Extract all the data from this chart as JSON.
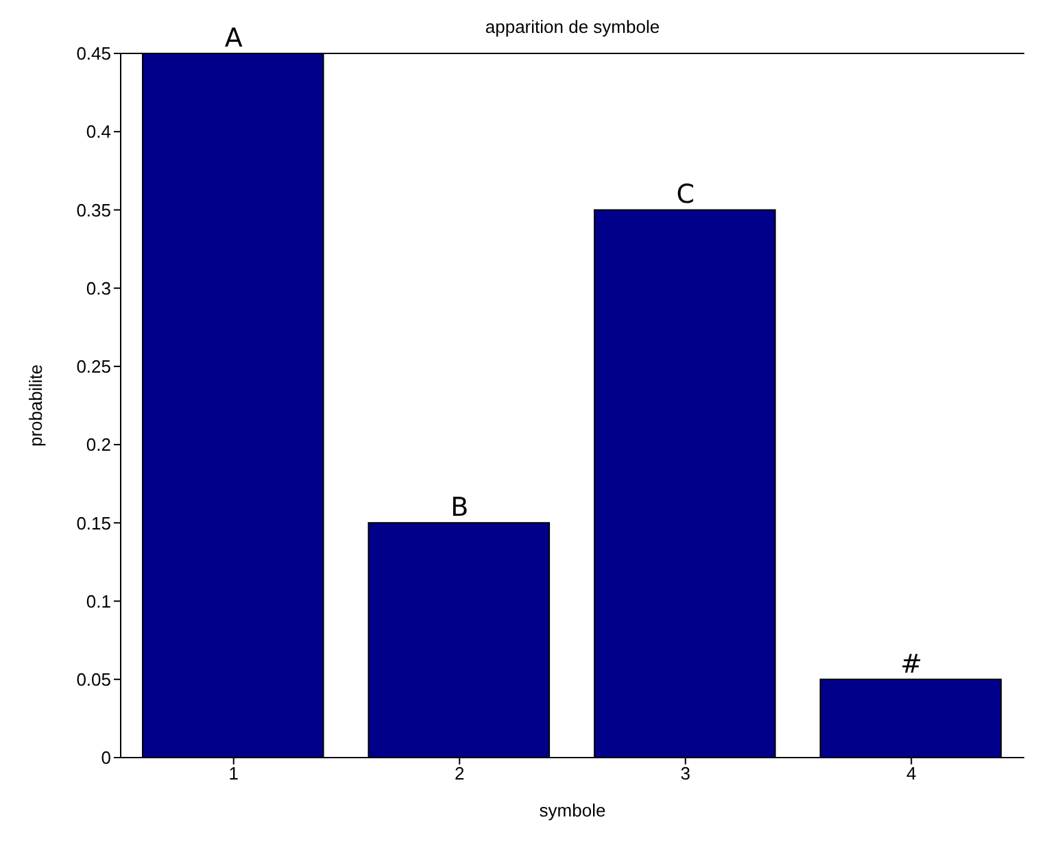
{
  "chart_data": {
    "type": "bar",
    "title": "apparition de symbole",
    "xlabel": "symbole",
    "ylabel": "probabilite",
    "x": [
      1,
      2,
      3,
      4
    ],
    "values": [
      0.45,
      0.15,
      0.35,
      0.05
    ],
    "color": "#00008b",
    "xlim": [
      0.5,
      4.5
    ],
    "xticks": [
      1,
      2,
      3,
      4
    ],
    "ylim": [
      0,
      0.45
    ],
    "yticks": [
      0,
      0.05,
      0.1,
      0.15,
      0.2,
      0.25,
      0.3,
      0.35,
      0.4,
      0.45
    ],
    "annotations": [
      {
        "text": "A",
        "x": 1,
        "y": 0.45
      },
      {
        "text": "B",
        "x": 2,
        "y": 0.15
      },
      {
        "text": "C",
        "x": 3,
        "y": 0.35
      },
      {
        "text": "#",
        "x": 4,
        "y": 0.05
      }
    ],
    "grid": false,
    "legend": false
  }
}
